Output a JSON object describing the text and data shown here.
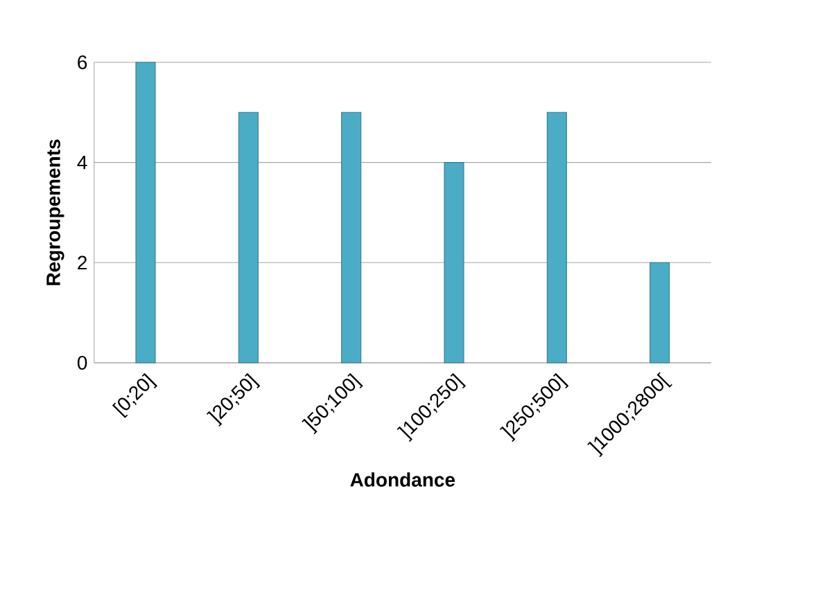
{
  "chart_data": {
    "type": "bar",
    "xlabel": "Adondance",
    "ylabel": "Regroupements",
    "categories": [
      "[0;20]",
      "]20;50]",
      "]50;100]",
      "]100;250]",
      "]250;500]",
      "]1000;2800["
    ],
    "values": [
      6,
      5,
      5,
      4,
      5,
      2
    ],
    "color": "#4bacc6",
    "ylim": [
      0,
      6
    ],
    "yticks": [
      0,
      2,
      4,
      6
    ],
    "grid": "y"
  }
}
